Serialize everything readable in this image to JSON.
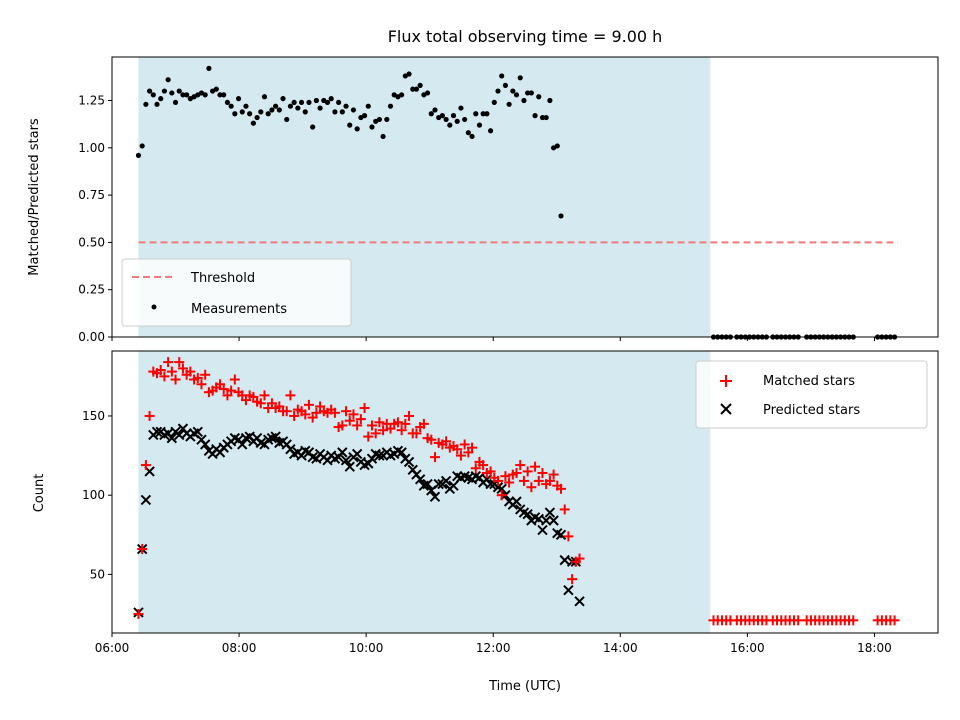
{
  "title": "Flux total observing time = 9.00 h",
  "colors": {
    "observing_band": "#d4eaf0",
    "threshold": "#f07a7a",
    "measurements": "#000000",
    "matched": "#ff0000",
    "predicted": "#000000"
  },
  "chart_data": [
    {
      "type": "scatter",
      "panel": "top",
      "ylabel": "Matched/Predicted stars",
      "xlabel": "",
      "xlim": [
        "06:00",
        "19:00"
      ],
      "ylim": [
        0,
        1.48
      ],
      "yticks": [
        0.0,
        0.25,
        0.5,
        0.75,
        1.0,
        1.25
      ],
      "ytick_labels": [
        "0.00",
        "0.25",
        "0.50",
        "0.75",
        "1.00",
        "1.25"
      ],
      "shaded_band": {
        "x": [
          "06:25",
          "15:25"
        ]
      },
      "threshold": {
        "name": "Threshold",
        "y": 0.5,
        "x": [
          "06:25",
          "18:22"
        ],
        "style": "dashed"
      },
      "measurements": {
        "name": "Measurements",
        "x_start": "06:25",
        "x_step_min": 3.5,
        "values": [
          0.96,
          1.01,
          1.23,
          1.3,
          1.28,
          1.23,
          1.26,
          1.3,
          1.36,
          1.29,
          1.24,
          1.3,
          1.28,
          1.28,
          1.26,
          1.27,
          1.28,
          1.29,
          1.28,
          1.42,
          1.3,
          1.31,
          1.28,
          1.28,
          1.24,
          1.22,
          1.18,
          1.26,
          1.19,
          1.22,
          1.18,
          1.13,
          1.16,
          1.19,
          1.27,
          1.18,
          1.2,
          1.22,
          1.2,
          1.26,
          1.15,
          1.22,
          1.24,
          1.21,
          1.24,
          1.19,
          1.24,
          1.11,
          1.25,
          1.21,
          1.25,
          1.24,
          1.26,
          1.19,
          1.24,
          1.19,
          1.22,
          1.12,
          1.2,
          1.1,
          1.16,
          1.17,
          1.22,
          1.11,
          1.14,
          1.15,
          1.06,
          1.15,
          1.22,
          1.28,
          1.27,
          1.28,
          1.38,
          1.39,
          1.31,
          1.31,
          1.33,
          1.28,
          1.29,
          1.18,
          1.2,
          1.16,
          1.17,
          1.15,
          1.12,
          1.17,
          1.14,
          1.21,
          1.15,
          1.08,
          1.06,
          1.18,
          1.12,
          1.18,
          1.18,
          1.09,
          1.24,
          1.3,
          1.38,
          1.33,
          1.23,
          1.3,
          1.28,
          1.37,
          1.25,
          1.29,
          1.29,
          1.17,
          1.27,
          1.16,
          1.16,
          1.25,
          1.0,
          1.01,
          0.64
        ],
        "zero_points_x": [
          "15:28",
          "15:32",
          "15:36",
          "15:40",
          "15:44",
          "15:50",
          "15:54",
          "15:58",
          "16:02",
          "16:06",
          "16:10",
          "16:14",
          "16:18",
          "16:24",
          "16:28",
          "16:32",
          "16:36",
          "16:40",
          "16:44",
          "16:48",
          "16:56",
          "17:00",
          "17:04",
          "17:08",
          "17:12",
          "17:16",
          "17:20",
          "17:24",
          "17:28",
          "17:32",
          "17:36",
          "17:40",
          "18:03",
          "18:07",
          "18:11",
          "18:15",
          "18:19"
        ]
      },
      "legend": {
        "location": "lower left",
        "entries": [
          "Threshold",
          "Measurements"
        ]
      }
    },
    {
      "type": "scatter",
      "panel": "bottom",
      "xlabel": "Time (UTC)",
      "ylabel": "Count",
      "xlim": [
        "06:00",
        "19:00"
      ],
      "ylim": [
        13,
        191
      ],
      "yticks": [
        50,
        100,
        150
      ],
      "ytick_labels": [
        "50",
        "100",
        "150"
      ],
      "xticks": [
        "06:00",
        "08:00",
        "10:00",
        "12:00",
        "14:00",
        "16:00",
        "18:00"
      ],
      "xtick_labels": [
        "06:00",
        "08:00",
        "10:00",
        "12:00",
        "14:00",
        "16:00",
        "18:00"
      ],
      "shaded_band": {
        "x": [
          "06:25",
          "15:25"
        ]
      },
      "series": [
        {
          "name": "Matched stars",
          "marker": "+",
          "x_start": "06:25",
          "x_step_min": 3.5,
          "values": [
            25,
            66,
            119,
            150,
            178,
            177,
            179,
            175,
            184,
            178,
            173,
            184,
            180,
            176,
            178,
            173,
            174,
            170,
            176,
            165,
            166,
            168,
            170,
            167,
            163,
            166,
            173,
            165,
            163,
            160,
            163,
            162,
            159,
            158,
            163,
            155,
            158,
            155,
            156,
            153,
            153,
            163,
            150,
            154,
            153,
            151,
            157,
            149,
            152,
            156,
            153,
            152,
            154,
            152,
            143,
            144,
            153,
            147,
            151,
            144,
            148,
            155,
            137,
            144,
            139,
            146,
            141,
            145,
            142,
            145,
            146,
            141,
            145,
            150,
            139,
            139,
            143,
            145,
            136,
            135,
            124,
            133,
            132,
            134,
            130,
            131,
            129,
            125,
            132,
            127,
            130,
            117,
            121,
            119,
            114,
            115,
            111,
            109,
            100,
            112,
            108,
            113,
            114,
            119,
            109,
            115,
            105,
            118,
            109,
            114,
            107,
            109,
            113,
            106,
            104,
            91,
            74,
            47,
            58,
            60
          ],
          "extra_points": [
            [
              "15:28",
              21
            ],
            [
              "15:32",
              21
            ],
            [
              "15:36",
              21
            ],
            [
              "15:40",
              21
            ],
            [
              "15:44",
              21
            ],
            [
              "15:50",
              21
            ],
            [
              "15:54",
              21
            ],
            [
              "15:58",
              21
            ],
            [
              "16:02",
              21
            ],
            [
              "16:06",
              21
            ],
            [
              "16:10",
              21
            ],
            [
              "16:14",
              21
            ],
            [
              "16:18",
              21
            ],
            [
              "16:24",
              21
            ],
            [
              "16:28",
              21
            ],
            [
              "16:32",
              21
            ],
            [
              "16:36",
              21
            ],
            [
              "16:40",
              21
            ],
            [
              "16:44",
              21
            ],
            [
              "16:48",
              21
            ],
            [
              "16:56",
              21
            ],
            [
              "17:00",
              21
            ],
            [
              "17:04",
              21
            ],
            [
              "17:08",
              21
            ],
            [
              "17:12",
              21
            ],
            [
              "17:16",
              21
            ],
            [
              "17:20",
              21
            ],
            [
              "17:24",
              21
            ],
            [
              "17:28",
              21
            ],
            [
              "17:32",
              21
            ],
            [
              "17:36",
              21
            ],
            [
              "17:40",
              21
            ],
            [
              "18:03",
              21
            ],
            [
              "18:07",
              21
            ],
            [
              "18:11",
              21
            ],
            [
              "18:15",
              21
            ],
            [
              "18:19",
              21
            ]
          ]
        },
        {
          "name": "Predicted stars",
          "marker": "x",
          "x_start": "06:25",
          "x_step_min": 3.5,
          "values": [
            26,
            66,
            97,
            115,
            138,
            140,
            140,
            138,
            139,
            136,
            140,
            138,
            142,
            139,
            137,
            139,
            140,
            135,
            132,
            128,
            126,
            129,
            127,
            130,
            132,
            134,
            136,
            135,
            132,
            136,
            137,
            134,
            136,
            133,
            132,
            135,
            136,
            137,
            133,
            134,
            132,
            129,
            126,
            127,
            125,
            128,
            127,
            124,
            123,
            126,
            124,
            122,
            125,
            123,
            124,
            127,
            122,
            118,
            124,
            126,
            121,
            119,
            120,
            123,
            126,
            125,
            125,
            127,
            125,
            126,
            128,
            127,
            123,
            121,
            116,
            113,
            110,
            106,
            107,
            103,
            99,
            107,
            107,
            109,
            104,
            106,
            112,
            111,
            112,
            111,
            110,
            112,
            111,
            108,
            110,
            107,
            107,
            105,
            104,
            100,
            96,
            94,
            96,
            91,
            89,
            88,
            84,
            86,
            85,
            78,
            84,
            89,
            84,
            76,
            75,
            59,
            40,
            58,
            58,
            33
          ],
          "extra_points": []
        }
      ],
      "legend": {
        "location": "upper right",
        "entries": [
          "Matched stars",
          "Predicted stars"
        ]
      }
    }
  ]
}
